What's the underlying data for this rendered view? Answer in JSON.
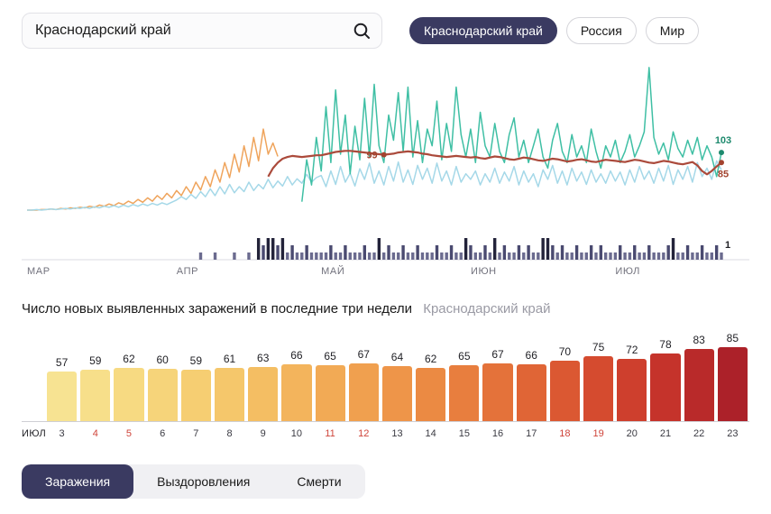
{
  "search": {
    "value": "Краснодарский край"
  },
  "region_buttons": [
    {
      "label": "Краснодарский край",
      "selected": true
    },
    {
      "label": "Россия",
      "selected": false
    },
    {
      "label": "Мир",
      "selected": false
    }
  ],
  "chart_data": [
    {
      "type": "line",
      "title": "",
      "x_axis": "дни с 1 марта по 23 июля",
      "months": [
        {
          "label": "МАР",
          "day": 0
        },
        {
          "label": "АПР",
          "day": 31
        },
        {
          "label": "МАЙ",
          "day": 61
        },
        {
          "label": "ИЮН",
          "day": 92
        },
        {
          "label": "ИЮЛ",
          "day": 122
        }
      ],
      "days_total": 145,
      "series": [
        {
          "name": "orange-line",
          "color": "#EFA45C",
          "width": 1.5,
          "start_day": 0,
          "values": [
            0,
            0,
            0,
            1,
            1,
            2,
            1,
            3,
            2,
            4,
            3,
            5,
            4,
            7,
            5,
            9,
            7,
            11,
            8,
            13,
            10,
            16,
            12,
            19,
            14,
            22,
            16,
            26,
            19,
            30,
            22,
            35,
            26,
            42,
            30,
            50,
            36,
            60,
            42,
            72,
            50,
            85,
            58,
            100,
            68,
            115,
            78,
            130,
            88,
            145,
            100,
            120,
            96
          ]
        },
        {
          "name": "lightblue-line",
          "color": "#A5D8E8",
          "width": 1.5,
          "start_day": 0,
          "values": [
            0,
            0,
            1,
            0,
            1,
            2,
            1,
            2,
            3,
            2,
            4,
            3,
            5,
            3,
            6,
            4,
            7,
            5,
            8,
            5,
            9,
            6,
            10,
            7,
            11,
            8,
            12,
            9,
            13,
            10,
            14,
            18,
            24,
            19,
            28,
            21,
            33,
            24,
            38,
            26,
            42,
            29,
            46,
            31,
            42,
            33,
            50,
            35,
            46,
            38,
            55,
            40,
            52,
            43,
            60,
            45,
            56,
            48,
            64,
            50,
            58,
            62,
            42,
            70,
            46,
            78,
            50,
            66,
            43,
            74,
            55,
            84,
            48,
            70,
            45,
            78,
            52,
            86,
            50,
            72,
            46,
            80,
            55,
            75,
            48,
            84,
            52,
            70,
            45,
            78,
            50,
            65,
            55,
            70,
            45,
            65,
            50,
            75,
            48,
            68,
            52,
            78,
            45,
            70,
            50,
            65,
            42,
            72,
            55,
            80,
            48,
            70,
            45,
            75,
            52,
            68,
            46,
            72,
            50,
            65,
            48,
            70,
            52,
            68,
            45,
            72,
            50,
            78,
            55,
            70,
            48,
            75,
            52,
            80,
            46,
            72,
            55,
            78,
            50,
            85,
            60,
            75,
            55,
            88,
            72
          ]
        },
        {
          "name": "teal-line",
          "color": "#3FBFA4",
          "width": 1.5,
          "start_day": 57,
          "values": [
            15,
            90,
            45,
            130,
            70,
            185,
            85,
            215,
            100,
            170,
            65,
            150,
            90,
            200,
            95,
            225,
            115,
            85,
            170,
            125,
            210,
            105,
            220,
            95,
            160,
            85,
            145,
            115,
            195,
            90,
            155,
            105,
            220,
            135,
            95,
            145,
            85,
            175,
            115,
            95,
            155,
            105,
            85,
            135,
            165,
            95,
            125,
            85,
            115,
            145,
            95,
            75,
            125,
            155,
            105,
            85,
            135,
            95,
            115,
            85,
            145,
            105,
            75,
            115,
            95,
            125,
            85,
            105,
            135,
            95,
            115,
            140,
            255,
            130,
            100,
            120,
            90,
            140,
            110,
            95,
            125,
            100,
            130,
            90,
            115,
            95,
            60,
            103
          ]
        },
        {
          "name": "darkred-line",
          "color": "#AB4A3B",
          "width": 2.2,
          "start_day": 50,
          "values": [
            60,
            75,
            85,
            92,
            95,
            97,
            96,
            95,
            96,
            97,
            98,
            98,
            100,
            102,
            104,
            105,
            106,
            106,
            105,
            104,
            103,
            102,
            101,
            100,
            99,
            100,
            101,
            103,
            104,
            105,
            104,
            103,
            101,
            100,
            98,
            97,
            96,
            95,
            96,
            97,
            96,
            95,
            94,
            95,
            93,
            92,
            94,
            96,
            95,
            93,
            91,
            90,
            92,
            94,
            93,
            91,
            89,
            88,
            90,
            92,
            91,
            89,
            87,
            88,
            90,
            91,
            89,
            87,
            86,
            88,
            90,
            89,
            88,
            87,
            86,
            88,
            90,
            89,
            87,
            85,
            84,
            86,
            88,
            87,
            85,
            83,
            82,
            84,
            86,
            80,
            70,
            64,
            70,
            78,
            85
          ]
        }
      ],
      "deaths_bars": {
        "name": "deaths-per-day",
        "start_day": 36,
        "values": [
          1,
          0,
          0,
          1,
          0,
          0,
          0,
          1,
          0,
          0,
          1,
          0,
          3,
          2,
          3,
          3,
          2,
          3,
          1,
          2,
          1,
          1,
          2,
          1,
          1,
          1,
          1,
          2,
          1,
          1,
          2,
          1,
          1,
          1,
          2,
          1,
          1,
          3,
          1,
          2,
          1,
          1,
          2,
          1,
          1,
          2,
          1,
          1,
          1,
          2,
          1,
          1,
          2,
          1,
          1,
          3,
          2,
          1,
          1,
          2,
          1,
          3,
          1,
          2,
          1,
          1,
          2,
          1,
          2,
          1,
          1,
          3,
          3,
          2,
          1,
          2,
          1,
          1,
          2,
          1,
          1,
          2,
          1,
          2,
          1,
          1,
          1,
          2,
          1,
          1,
          2,
          1,
          1,
          2,
          1,
          1,
          1,
          2,
          3,
          1,
          1,
          2,
          1,
          1,
          2,
          1,
          1,
          2,
          1
        ]
      },
      "annotations": [
        {
          "label": "99",
          "day": 74,
          "value": 99,
          "color": "#A3432F",
          "placement": "left",
          "target": "line"
        },
        {
          "label": "103",
          "day": 144,
          "value": 103,
          "color": "#1E8A6E",
          "placement": "above",
          "target": "line"
        },
        {
          "label": "85",
          "day": 144,
          "value": 85,
          "color": "#A3432F",
          "placement": "below",
          "target": "line"
        },
        {
          "label": "1",
          "day": 144,
          "value": 1,
          "color": "#1F1F24",
          "placement": "above",
          "target": "bars"
        }
      ]
    },
    {
      "type": "bar",
      "title": "Число новых выявленных заражений в последние три недели",
      "subtitle": "Краснодарский край",
      "month_label": "ИЮЛ",
      "categories": [
        "3",
        "4",
        "5",
        "6",
        "7",
        "8",
        "9",
        "10",
        "11",
        "12",
        "13",
        "14",
        "15",
        "16",
        "17",
        "18",
        "19",
        "20",
        "21",
        "22",
        "23"
      ],
      "values": [
        57,
        59,
        62,
        60,
        59,
        61,
        63,
        66,
        65,
        67,
        64,
        62,
        65,
        67,
        66,
        70,
        75,
        72,
        78,
        83,
        85
      ],
      "bars": [
        {
          "day": "3",
          "value": 57,
          "color": "#F7E392",
          "weekend": false
        },
        {
          "day": "4",
          "value": 59,
          "color": "#F7DF8A",
          "weekend": true
        },
        {
          "day": "5",
          "value": 62,
          "color": "#F7DA82",
          "weekend": true
        },
        {
          "day": "6",
          "value": 60,
          "color": "#F6D47A",
          "weekend": false
        },
        {
          "day": "7",
          "value": 59,
          "color": "#F6CE72",
          "weekend": false
        },
        {
          "day": "8",
          "value": 61,
          "color": "#F5C76B",
          "weekend": false
        },
        {
          "day": "9",
          "value": 63,
          "color": "#F4BE63",
          "weekend": false
        },
        {
          "day": "10",
          "value": 66,
          "color": "#F3B45C",
          "weekend": false
        },
        {
          "day": "11",
          "value": 65,
          "color": "#F2AA55",
          "weekend": true
        },
        {
          "day": "12",
          "value": 67,
          "color": "#F0A04F",
          "weekend": true
        },
        {
          "day": "13",
          "value": 64,
          "color": "#EE9549",
          "weekend": false
        },
        {
          "day": "14",
          "value": 62,
          "color": "#EB8A43",
          "weekend": false
        },
        {
          "day": "15",
          "value": 65,
          "color": "#E87E3E",
          "weekend": false
        },
        {
          "day": "16",
          "value": 67,
          "color": "#E4723A",
          "weekend": false
        },
        {
          "day": "17",
          "value": 66,
          "color": "#E06536",
          "weekend": false
        },
        {
          "day": "18",
          "value": 70,
          "color": "#DB5832",
          "weekend": true
        },
        {
          "day": "19",
          "value": 75,
          "color": "#D54B2F",
          "weekend": true
        },
        {
          "day": "20",
          "value": 72,
          "color": "#CE3F2D",
          "weekend": false
        },
        {
          "day": "21",
          "value": 78,
          "color": "#C5332B",
          "weekend": false
        },
        {
          "day": "22",
          "value": 83,
          "color": "#B92A2A",
          "weekend": false
        },
        {
          "day": "23",
          "value": 85,
          "color": "#AC2129",
          "weekend": false
        }
      ]
    }
  ],
  "tabs": [
    {
      "label": "Заражения",
      "selected": true
    },
    {
      "label": "Выздоровления",
      "selected": false
    },
    {
      "label": "Смерти",
      "selected": false
    }
  ]
}
